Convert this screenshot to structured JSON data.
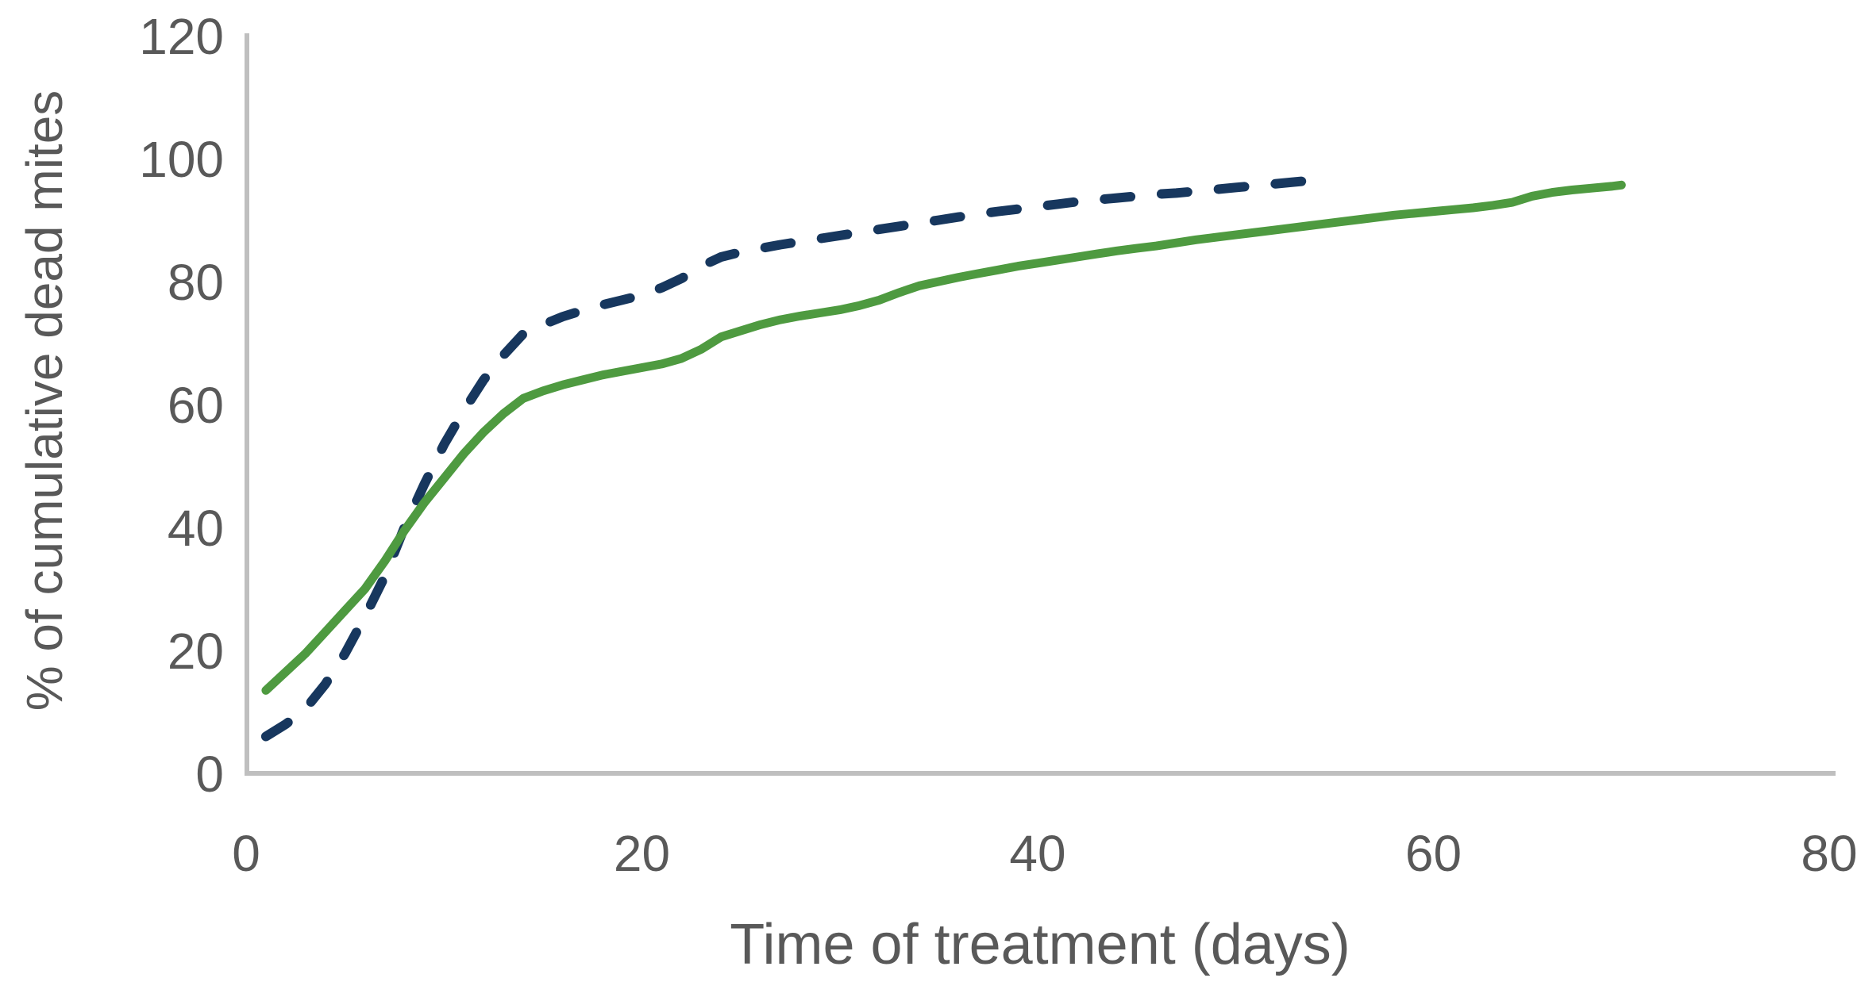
{
  "chart_data": {
    "type": "line",
    "title": "",
    "xlabel": "Time of treatment (days)",
    "ylabel": "% of cumulative dead mites",
    "xlim": [
      0,
      80
    ],
    "ylim": [
      0,
      120
    ],
    "x_ticks": [
      0,
      20,
      40,
      60,
      80
    ],
    "y_ticks": [
      0,
      20,
      40,
      60,
      80,
      100,
      120
    ],
    "grid": false,
    "legend_position": "none",
    "axis_color": "#BFBFBF",
    "text_color": "#595959",
    "series": [
      {
        "name": "dashed-navy-treatment",
        "style": "dashed",
        "color": "#17375E",
        "points": [
          [
            1,
            6
          ],
          [
            2,
            8
          ],
          [
            3,
            10.5
          ],
          [
            4,
            14.5
          ],
          [
            5,
            19.5
          ],
          [
            6,
            25.5
          ],
          [
            7,
            32
          ],
          [
            8,
            40
          ],
          [
            9,
            47
          ],
          [
            10,
            53.5
          ],
          [
            11,
            59
          ],
          [
            12,
            64
          ],
          [
            13,
            68
          ],
          [
            14,
            71.5
          ],
          [
            15,
            73
          ],
          [
            16,
            74.3
          ],
          [
            17,
            75.3
          ],
          [
            18,
            76.2
          ],
          [
            19,
            77
          ],
          [
            20,
            77.8
          ],
          [
            21,
            79
          ],
          [
            22,
            80.5
          ],
          [
            23,
            82.5
          ],
          [
            24,
            84
          ],
          [
            25,
            84.8
          ],
          [
            26,
            85.4
          ],
          [
            27,
            86
          ],
          [
            28,
            86.5
          ],
          [
            29,
            87
          ],
          [
            30,
            87.5
          ],
          [
            31,
            88
          ],
          [
            32,
            88.5
          ],
          [
            33,
            89
          ],
          [
            34,
            89.5
          ],
          [
            35,
            90
          ],
          [
            36,
            90.5
          ],
          [
            37,
            91
          ],
          [
            38,
            91.4
          ],
          [
            39,
            91.8
          ],
          [
            40,
            92.2
          ],
          [
            41,
            92.6
          ],
          [
            42,
            93
          ],
          [
            43,
            93.3
          ],
          [
            44,
            93.6
          ],
          [
            45,
            93.9
          ],
          [
            46,
            94.2
          ],
          [
            47,
            94.4
          ],
          [
            48,
            94.7
          ],
          [
            49,
            95
          ],
          [
            50,
            95.3
          ],
          [
            51,
            95.6
          ],
          [
            52,
            95.9
          ],
          [
            53,
            96.2
          ],
          [
            54,
            96.5
          ]
        ]
      },
      {
        "name": "solid-green-treatment",
        "style": "solid",
        "color": "#4E9A40",
        "points": [
          [
            1,
            13.5
          ],
          [
            2,
            16.5
          ],
          [
            3,
            19.5
          ],
          [
            4,
            23
          ],
          [
            5,
            26.5
          ],
          [
            6,
            30
          ],
          [
            7,
            34.5
          ],
          [
            8,
            39.5
          ],
          [
            9,
            44
          ],
          [
            10,
            48
          ],
          [
            11,
            52
          ],
          [
            12,
            55.5
          ],
          [
            13,
            58.5
          ],
          [
            14,
            61
          ],
          [
            15,
            62.2
          ],
          [
            16,
            63.2
          ],
          [
            17,
            64
          ],
          [
            18,
            64.8
          ],
          [
            19,
            65.4
          ],
          [
            20,
            66
          ],
          [
            21,
            66.6
          ],
          [
            22,
            67.5
          ],
          [
            23,
            69
          ],
          [
            24,
            71
          ],
          [
            25,
            72
          ],
          [
            26,
            73
          ],
          [
            27,
            73.8
          ],
          [
            28,
            74.4
          ],
          [
            29,
            74.9
          ],
          [
            30,
            75.4
          ],
          [
            31,
            76.1
          ],
          [
            32,
            77
          ],
          [
            33,
            78.2
          ],
          [
            34,
            79.3
          ],
          [
            35,
            80
          ],
          [
            36,
            80.7
          ],
          [
            37,
            81.3
          ],
          [
            38,
            81.9
          ],
          [
            39,
            82.5
          ],
          [
            40,
            83
          ],
          [
            41,
            83.5
          ],
          [
            42,
            84
          ],
          [
            43,
            84.5
          ],
          [
            44,
            85
          ],
          [
            45,
            85.4
          ],
          [
            46,
            85.8
          ],
          [
            47,
            86.3
          ],
          [
            48,
            86.8
          ],
          [
            49,
            87.2
          ],
          [
            50,
            87.6
          ],
          [
            51,
            88
          ],
          [
            52,
            88.4
          ],
          [
            53,
            88.8
          ],
          [
            54,
            89.2
          ],
          [
            55,
            89.6
          ],
          [
            56,
            90
          ],
          [
            57,
            90.4
          ],
          [
            58,
            90.8
          ],
          [
            59,
            91.1
          ],
          [
            60,
            91.4
          ],
          [
            61,
            91.7
          ],
          [
            62,
            92
          ],
          [
            63,
            92.4
          ],
          [
            64,
            92.9
          ],
          [
            65,
            93.9
          ],
          [
            66,
            94.5
          ],
          [
            67,
            94.9
          ],
          [
            68,
            95.2
          ],
          [
            69,
            95.5
          ],
          [
            69.5,
            95.7
          ]
        ]
      }
    ]
  }
}
